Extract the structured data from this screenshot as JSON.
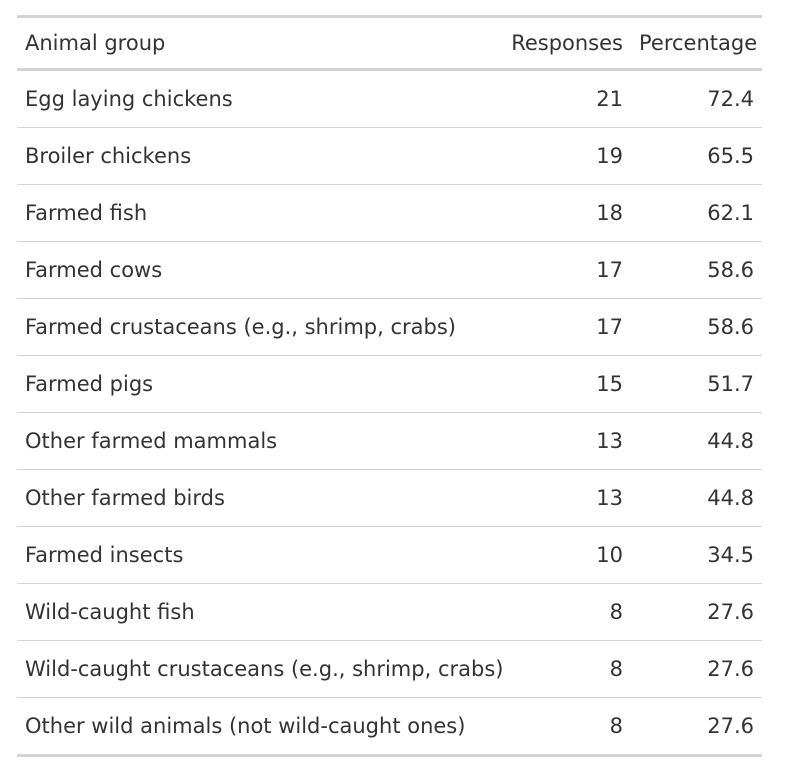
{
  "chart_data": {
    "type": "table",
    "columns": [
      "Animal group",
      "Responses",
      "Percentage"
    ],
    "rows": [
      {
        "group": "Egg laying chickens",
        "responses": "21",
        "percentage": "72.4"
      },
      {
        "group": "Broiler chickens",
        "responses": "19",
        "percentage": "65.5"
      },
      {
        "group": "Farmed fish",
        "responses": "18",
        "percentage": "62.1"
      },
      {
        "group": "Farmed cows",
        "responses": "17",
        "percentage": "58.6"
      },
      {
        "group": "Farmed crustaceans (e.g., shrimp, crabs)",
        "responses": "17",
        "percentage": "58.6"
      },
      {
        "group": "Farmed pigs",
        "responses": "15",
        "percentage": "51.7"
      },
      {
        "group": "Other farmed mammals",
        "responses": "13",
        "percentage": "44.8"
      },
      {
        "group": "Other farmed birds",
        "responses": "13",
        "percentage": "44.8"
      },
      {
        "group": "Farmed insects",
        "responses": "10",
        "percentage": "34.5"
      },
      {
        "group": "Wild-caught fish",
        "responses": "8",
        "percentage": "27.6"
      },
      {
        "group": "Wild-caught crustaceans (e.g., shrimp, crabs)",
        "responses": "8",
        "percentage": "27.6"
      },
      {
        "group": "Other wild animals (not wild-caught ones)",
        "responses": "8",
        "percentage": "27.6"
      }
    ]
  }
}
